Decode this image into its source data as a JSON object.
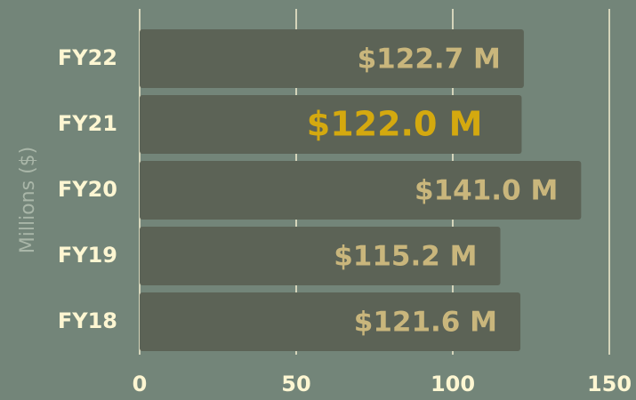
{
  "chart_data": {
    "type": "barh",
    "categories": [
      "FY22",
      "FY21",
      "FY20",
      "FY19",
      "FY18"
    ],
    "values": [
      122.7,
      122.0,
      141.0,
      115.2,
      121.6
    ],
    "value_labels": [
      "$122.7 M",
      "$122.0 M",
      "$141.0 M",
      "$115.2 M",
      "$121.6 M"
    ],
    "value_label_colors": [
      "#c9b67c",
      "#d4a90f",
      "#c9b67c",
      "#c9b67c",
      "#c9b67c"
    ],
    "color": "#5c6356",
    "y_axis_label": "Millions ($)",
    "xlim": [
      0,
      150
    ],
    "xticks": [
      0,
      50,
      100,
      150
    ],
    "grid": true
  }
}
